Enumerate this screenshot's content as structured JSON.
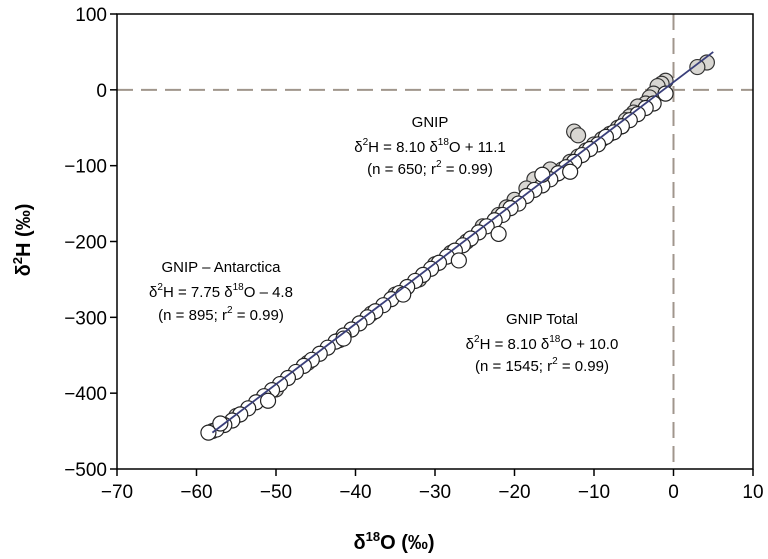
{
  "chart_data": {
    "type": "scatter",
    "title": "",
    "xlabel": {
      "base": "δ",
      "sup": "18",
      "rest": "O (‰)"
    },
    "ylabel": {
      "base": "δ",
      "sup": "2",
      "rest": "H (‰)"
    },
    "xlim": [
      -70,
      10
    ],
    "ylim": [
      -500,
      100
    ],
    "xticks": [
      -70,
      -60,
      -50,
      -40,
      -30,
      -20,
      -10,
      0,
      10
    ],
    "yticks": [
      100,
      0,
      -100,
      -200,
      -300,
      -400,
      -500
    ],
    "xtick_labels": [
      "−70",
      "−60",
      "−50",
      "−40",
      "−30",
      "−20",
      "−10",
      "0",
      "10"
    ],
    "ytick_labels": [
      "100",
      "0",
      "−100",
      "−200",
      "−300",
      "−400",
      "−500"
    ],
    "grid": false,
    "reference_lines": {
      "x": 0,
      "y": 0,
      "style": "dashed",
      "color": "#a0968c"
    },
    "series": [
      {
        "fill": "#d8d6d2",
        "stroke": "#333333",
        "x": [
          4.2,
          3.0,
          -1.0,
          -1.5,
          -2.0,
          -2.5,
          -3.0,
          -3.5,
          -4.0,
          -4.5,
          -5.0,
          -5.5,
          -6.0,
          -6.5,
          -7.0,
          -8.0,
          -9.0,
          -10.0,
          -11.0,
          -12.0,
          -13.0,
          -14.0,
          -15.0,
          -16.0,
          -17.0,
          -12.5,
          -12.0,
          -15.5,
          -17.5,
          -18.5,
          -20.0,
          -21.0,
          -22.0,
          -24.0,
          -26.0,
          -28.0,
          -30.0,
          -32.0,
          -35.0,
          -38.0,
          -42.0,
          -46.0,
          -50.0,
          -55.0,
          -58.0
        ],
        "y": [
          36,
          30,
          12,
          8,
          5,
          -5,
          -10,
          -18,
          -25,
          -22,
          -30,
          -35,
          -40,
          -48,
          -50,
          -58,
          -65,
          -72,
          -80,
          -88,
          -95,
          -105,
          -112,
          -118,
          -125,
          -55,
          -60,
          -105,
          -118,
          -130,
          -145,
          -155,
          -165,
          -180,
          -200,
          -215,
          -230,
          -250,
          -270,
          -295,
          -330,
          -360,
          -395,
          -430,
          -450
        ]
      },
      {
        "fill": "#ffffff",
        "stroke": "#222222",
        "x": [
          -1.0,
          -2.5,
          -3.5,
          -4.5,
          -5.5,
          -6.5,
          -7.5,
          -8.5,
          -9.5,
          -10.5,
          -11.5,
          -12.5,
          -13.5,
          -14.5,
          -15.5,
          -16.5,
          -17.5,
          -18.5,
          -19.5,
          -20.5,
          -21.5,
          -22.5,
          -23.5,
          -24.5,
          -25.5,
          -26.5,
          -27.5,
          -28.5,
          -29.5,
          -30.5,
          -31.5,
          -32.5,
          -33.5,
          -34.5,
          -35.5,
          -36.5,
          -37.5,
          -38.5,
          -39.5,
          -40.5,
          -41.5,
          -42.5,
          -43.5,
          -44.5,
          -45.5,
          -46.5,
          -47.5,
          -48.5,
          -49.5,
          -50.5,
          -51.5,
          -52.5,
          -53.5,
          -54.5,
          -55.5,
          -56.5,
          -57.5,
          -58.5,
          -13.0,
          -16.5,
          -22.0,
          -27.0,
          -34.0,
          -41.5,
          -51.0,
          -57.0
        ],
        "y": [
          -5,
          -18,
          -24,
          -32,
          -40,
          -48,
          -56,
          -62,
          -72,
          -78,
          -86,
          -95,
          -102,
          -110,
          -118,
          -126,
          -132,
          -140,
          -150,
          -156,
          -165,
          -172,
          -180,
          -188,
          -196,
          -205,
          -212,
          -220,
          -228,
          -236,
          -244,
          -252,
          -260,
          -268,
          -276,
          -284,
          -292,
          -300,
          -308,
          -316,
          -324,
          -332,
          -340,
          -348,
          -356,
          -364,
          -372,
          -380,
          -388,
          -396,
          -404,
          -412,
          -420,
          -428,
          -436,
          -442,
          -448,
          -452,
          -108,
          -112,
          -190,
          -225,
          -270,
          -328,
          -410,
          -440
        ]
      }
    ],
    "fit_line": {
      "x": [
        -58,
        5
      ],
      "y": [
        -452,
        50
      ],
      "color": "#3a3f7a"
    },
    "annotations": [
      {
        "lines": [
          "GNIP",
          "δ2H = 8.10 δ18O + 11.1",
          "(n = 650; r2 = 0.99)"
        ],
        "title": "GNIP",
        "eq": {
          "a": "δ",
          "a_sup": "2",
          "b": "H = 8.10 δ",
          "b_sup": "18",
          "c": "O + 11.1"
        },
        "stats": {
          "a": "(n = 650; r",
          "a_sup": "2",
          "b": " = 0.99)"
        }
      },
      {
        "lines": [
          "GNIP – Antarctica",
          "δ2H = 7.75 δ18O – 4.8",
          "(n = 895; r2 = 0.99)"
        ],
        "title": "GNIP – Antarctica",
        "eq": {
          "a": "δ",
          "a_sup": "2",
          "b": "H = 7.75 δ",
          "b_sup": "18",
          "c": "O – 4.8"
        },
        "stats": {
          "a": "(n = 895; r",
          "a_sup": "2",
          "b": " = 0.99)"
        }
      },
      {
        "lines": [
          "GNIP Total",
          "δ2H = 8.10 δ18O + 10.0",
          "(n = 1545; r2 = 0.99)"
        ],
        "title": "GNIP Total",
        "eq": {
          "a": "δ",
          "a_sup": "2",
          "b": "H = 8.10 δ",
          "b_sup": "18",
          "c": "O + 10.0"
        },
        "stats": {
          "a": "(n = 1545; r",
          "a_sup": "2",
          "b": " = 0.99)"
        }
      }
    ]
  }
}
